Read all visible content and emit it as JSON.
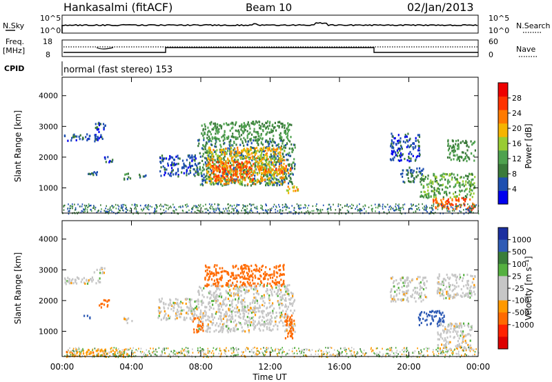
{
  "header": {
    "station": "Hankasalmi (fitACF)",
    "beam": "Beam 10",
    "date": "02/Jan/2013"
  },
  "top_panels": {
    "noise": {
      "left_label": "N.Sky",
      "left_ticks": [
        "10^5",
        "10^0"
      ],
      "right_label": "N.Search",
      "right_ticks": [
        "10^5",
        "10^0"
      ]
    },
    "freq": {
      "left_label_line1": "Freq.",
      "left_label_line2": "[MHz]",
      "left_ticks": [
        "18",
        "8"
      ],
      "right_label": "Nave",
      "right_ticks": [
        "60",
        "0"
      ]
    },
    "cpid": {
      "label": "CPID",
      "value": "normal (fast stereo) 153"
    }
  },
  "colors": {
    "power_scale": [
      "#0000ee",
      "#1e4fb0",
      "#3a7a3a",
      "#4fa24f",
      "#99cc33",
      "#f5b400",
      "#ff7a00",
      "#ff3300",
      "#ee0000"
    ],
    "velocity_scale": [
      "#1b2fa0",
      "#2f5bb5",
      "#3a7e3a",
      "#55b040",
      "#c6c6c6",
      "#c6c6c6",
      "#ff9900",
      "#ff6a00",
      "#ff2200",
      "#dd0000"
    ]
  },
  "chart_data": [
    {
      "type": "heatmap",
      "name": "power-panel",
      "ylabel": "Slant Range [km]",
      "yticks": [
        "1000",
        "2000",
        "3000",
        "4000"
      ],
      "ylim": [
        180,
        4600
      ],
      "xlim": [
        0,
        24
      ],
      "colorbar_label": "Power [dB]",
      "colorbar_ticks": [
        "4",
        "8",
        "12",
        "16",
        "20",
        "24",
        "28"
      ],
      "colorbar_range": [
        0,
        32
      ],
      "regions": [
        {
          "t": [
            0.1,
            2.3
          ],
          "r": [
            2550,
            2800
          ],
          "v": 6
        },
        {
          "t": [
            1.8,
            2.6
          ],
          "r": [
            2850,
            3150
          ],
          "v": 5
        },
        {
          "t": [
            1.2,
            2.0
          ],
          "r": [
            1400,
            1550
          ],
          "v": 8
        },
        {
          "t": [
            3.4,
            3.9
          ],
          "r": [
            1300,
            1500
          ],
          "v": 9
        },
        {
          "t": [
            2.3,
            2.9
          ],
          "r": [
            1850,
            2050
          ],
          "v": 6
        },
        {
          "t": [
            4.4,
            4.9
          ],
          "r": [
            1350,
            1500
          ],
          "v": 8
        },
        {
          "t": [
            5.6,
            7.8
          ],
          "r": [
            1400,
            2100
          ],
          "v": 6
        },
        {
          "t": [
            7.8,
            13.4
          ],
          "r": [
            1100,
            2600
          ],
          "v": 10
        },
        {
          "t": [
            8.0,
            13.2
          ],
          "r": [
            2600,
            3200
          ],
          "v": 12
        },
        {
          "t": [
            8.3,
            12.8
          ],
          "r": [
            1150,
            2350
          ],
          "v": 22
        },
        {
          "t": [
            8.6,
            11.0
          ],
          "r": [
            1250,
            1900
          ],
          "v": 28
        },
        {
          "t": [
            11.4,
            13.2
          ],
          "r": [
            1500,
            1750
          ],
          "v": 26
        },
        {
          "t": [
            12.9,
            13.6
          ],
          "r": [
            850,
            1100
          ],
          "v": 22
        },
        {
          "t": [
            18.9,
            20.6
          ],
          "r": [
            1900,
            2800
          ],
          "v": 6
        },
        {
          "t": [
            19.5,
            20.8
          ],
          "r": [
            1200,
            1700
          ],
          "v": 8
        },
        {
          "t": [
            20.6,
            23.8
          ],
          "r": [
            700,
            1500
          ],
          "v": 14
        },
        {
          "t": [
            21.3,
            23.8
          ],
          "r": [
            300,
            700
          ],
          "v": 28
        },
        {
          "t": [
            22.2,
            23.8
          ],
          "r": [
            1900,
            2600
          ],
          "v": 12
        }
      ]
    },
    {
      "type": "heatmap",
      "name": "velocity-panel",
      "ylabel": "Slant Range [km]",
      "yticks": [
        "1000",
        "2000",
        "3000",
        "4000"
      ],
      "ylim": [
        180,
        4600
      ],
      "xlim": [
        0,
        24
      ],
      "xlabel": "Time UT",
      "xticks": [
        "00:00",
        "04:00",
        "08:00",
        "12:00",
        "16:00",
        "20:00",
        "00:00"
      ],
      "colorbar_label": "Velocity [m s⁻¹]",
      "colorbar_ticks": [
        "1000",
        "500",
        "100",
        "25",
        "-25",
        "-100",
        "-500",
        "-1000"
      ],
      "regions": [
        {
          "t": [
            0.1,
            2.2
          ],
          "r": [
            2550,
            2800
          ],
          "v": 0
        },
        {
          "t": [
            1.8,
            2.5
          ],
          "r": [
            2900,
            3100
          ],
          "v": 0
        },
        {
          "t": [
            2.1,
            2.7
          ],
          "r": [
            1800,
            2050
          ],
          "v": -200
        },
        {
          "t": [
            1.2,
            1.7
          ],
          "r": [
            1450,
            1550
          ],
          "v": 150
        },
        {
          "t": [
            3.5,
            4.0
          ],
          "r": [
            1300,
            1500
          ],
          "v": 0
        },
        {
          "t": [
            0.2,
            3.8
          ],
          "r": [
            200,
            450
          ],
          "v": -80
        },
        {
          "t": [
            7.8,
            13.4
          ],
          "r": [
            1000,
            2550
          ],
          "v": 0
        },
        {
          "t": [
            8.2,
            12.8
          ],
          "r": [
            2500,
            3200
          ],
          "v": -200
        },
        {
          "t": [
            7.5,
            8.1
          ],
          "r": [
            1000,
            1500
          ],
          "v": -200
        },
        {
          "t": [
            12.8,
            13.4
          ],
          "r": [
            800,
            1600
          ],
          "v": -200
        },
        {
          "t": [
            5.5,
            7.8
          ],
          "r": [
            1400,
            2100
          ],
          "v": 0
        },
        {
          "t": [
            18.9,
            21.0
          ],
          "r": [
            2000,
            2800
          ],
          "v": 0
        },
        {
          "t": [
            20.5,
            22.0
          ],
          "r": [
            1200,
            1700
          ],
          "v": 150
        },
        {
          "t": [
            21.6,
            23.6
          ],
          "r": [
            400,
            1300
          ],
          "v": 0
        },
        {
          "t": [
            21.6,
            23.8
          ],
          "r": [
            2100,
            2900
          ],
          "v": 0
        }
      ]
    }
  ]
}
